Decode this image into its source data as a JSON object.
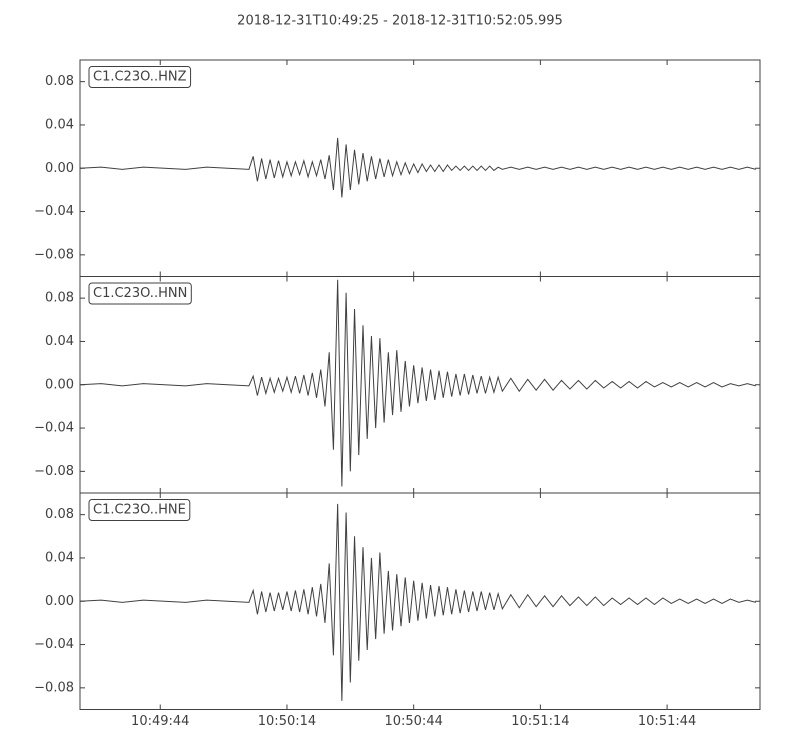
{
  "title": "2018-12-31T10:49:25  -  2018-12-31T10:52:05.995",
  "chart_data": [
    {
      "type": "line",
      "label": "C1.C23O..HNZ",
      "color": "#404040",
      "x": [
        0,
        5,
        10,
        15,
        20,
        25,
        30,
        35,
        40,
        41,
        42,
        43,
        44,
        45,
        46,
        47,
        48,
        49,
        50,
        51,
        52,
        53,
        54,
        55,
        56,
        57,
        58,
        59,
        60,
        61,
        62,
        63,
        64,
        65,
        66,
        67,
        68,
        69,
        70,
        71,
        72,
        73,
        74,
        75,
        76,
        77,
        78,
        79,
        80,
        81,
        82,
        83,
        84,
        85,
        86,
        87,
        88,
        89,
        90,
        91,
        92,
        93,
        94,
        95,
        96,
        97,
        98,
        99,
        100,
        102,
        104,
        106,
        108,
        110,
        112,
        114,
        116,
        118,
        120,
        122,
        124,
        126,
        128,
        130,
        132,
        134,
        136,
        138,
        140,
        142,
        144,
        146,
        148,
        150,
        152,
        154,
        156,
        158,
        160
      ],
      "values": [
        0,
        0.001,
        -0.001,
        0.001,
        0,
        -0.001,
        0.001,
        0,
        -0.001,
        0.011,
        -0.012,
        0.009,
        -0.01,
        0.008,
        -0.009,
        0.007,
        -0.008,
        0.006,
        -0.007,
        0.006,
        -0.006,
        0.007,
        -0.008,
        0.006,
        -0.007,
        0.008,
        -0.01,
        0.012,
        -0.02,
        0.028,
        -0.027,
        0.022,
        -0.02,
        0.017,
        -0.015,
        0.014,
        -0.012,
        0.011,
        -0.01,
        0.009,
        -0.008,
        0.008,
        -0.007,
        0.006,
        -0.006,
        0.005,
        -0.005,
        0.004,
        -0.004,
        0.004,
        -0.003,
        0.003,
        -0.003,
        0.003,
        -0.003,
        0.003,
        -0.002,
        0.002,
        -0.002,
        0.002,
        -0.002,
        0.002,
        -0.002,
        0.002,
        -0.002,
        0.002,
        -0.002,
        0.001,
        -0.001,
        0.001,
        -0.001,
        0.001,
        -0.001,
        0.001,
        -0.001,
        0.001,
        -0.001,
        0.001,
        -0.001,
        0.001,
        -0.001,
        0.001,
        -0.001,
        0.001,
        -0.001,
        0.001,
        -0.001,
        0.001,
        -0.001,
        0.001,
        -0.001,
        0.001,
        -0.001,
        0.001,
        -0.001,
        0.001,
        -0.001,
        0.001,
        -0.001
      ],
      "xlim": [
        0,
        160.995
      ],
      "ylim": [
        -0.1,
        0.1
      ],
      "yticks": [
        0.08,
        0.04,
        {
          "value": 0,
          "label": "0.00"
        },
        {
          "value": -0.04,
          "label": "−0.04"
        },
        {
          "value": -0.08,
          "label": "−0.08"
        }
      ]
    },
    {
      "type": "line",
      "label": "C1.C23O..HNN",
      "color": "#404040",
      "x": [
        0,
        5,
        10,
        15,
        20,
        25,
        30,
        35,
        40,
        41,
        42,
        43,
        44,
        45,
        46,
        47,
        48,
        49,
        50,
        51,
        52,
        53,
        54,
        55,
        56,
        57,
        58,
        59,
        60,
        61,
        62,
        63,
        64,
        65,
        66,
        67,
        68,
        69,
        70,
        71,
        72,
        73,
        74,
        75,
        76,
        77,
        78,
        79,
        80,
        81,
        82,
        83,
        84,
        85,
        86,
        87,
        88,
        89,
        90,
        91,
        92,
        93,
        94,
        95,
        96,
        97,
        98,
        99,
        100,
        102,
        104,
        106,
        108,
        110,
        112,
        114,
        116,
        118,
        120,
        122,
        124,
        126,
        128,
        130,
        132,
        134,
        136,
        138,
        140,
        142,
        144,
        146,
        148,
        150,
        152,
        154,
        156,
        158,
        160
      ],
      "values": [
        0,
        0.001,
        -0.001,
        0.001,
        0,
        -0.001,
        0.001,
        0,
        -0.001,
        0.008,
        -0.01,
        0.007,
        -0.008,
        0.006,
        -0.007,
        0.006,
        -0.006,
        0.007,
        -0.007,
        0.008,
        -0.008,
        0.009,
        -0.01,
        0.011,
        -0.012,
        0.014,
        -0.02,
        0.03,
        -0.06,
        0.097,
        -0.094,
        0.085,
        -0.08,
        0.07,
        -0.065,
        0.055,
        -0.05,
        0.045,
        -0.04,
        0.043,
        -0.035,
        0.03,
        -0.028,
        0.032,
        -0.025,
        0.022,
        -0.02,
        0.018,
        -0.017,
        0.016,
        -0.015,
        0.014,
        -0.014,
        0.013,
        -0.012,
        0.012,
        -0.011,
        0.01,
        -0.01,
        0.01,
        -0.009,
        0.009,
        -0.008,
        0.008,
        -0.008,
        0.007,
        -0.007,
        0.007,
        -0.006,
        0.006,
        -0.006,
        0.005,
        -0.005,
        0.005,
        -0.005,
        0.004,
        -0.004,
        0.004,
        -0.004,
        0.004,
        -0.003,
        0.003,
        -0.003,
        0.003,
        -0.003,
        0.003,
        -0.002,
        0.002,
        -0.002,
        0.002,
        -0.002,
        0.002,
        -0.002,
        0.002,
        -0.002,
        0.001,
        -0.001,
        0.001,
        -0.001
      ],
      "xlim": [
        0,
        160.995
      ],
      "ylim": [
        -0.1,
        0.1
      ],
      "yticks": [
        0.08,
        0.04,
        {
          "value": 0,
          "label": "0.00"
        },
        {
          "value": -0.04,
          "label": "−0.04"
        },
        {
          "value": -0.08,
          "label": "−0.08"
        }
      ]
    },
    {
      "type": "line",
      "label": "C1.C23O..HNE",
      "color": "#404040",
      "x": [
        0,
        5,
        10,
        15,
        20,
        25,
        30,
        35,
        40,
        41,
        42,
        43,
        44,
        45,
        46,
        47,
        48,
        49,
        50,
        51,
        52,
        53,
        54,
        55,
        56,
        57,
        58,
        59,
        60,
        61,
        62,
        63,
        64,
        65,
        66,
        67,
        68,
        69,
        70,
        71,
        72,
        73,
        74,
        75,
        76,
        77,
        78,
        79,
        80,
        81,
        82,
        83,
        84,
        85,
        86,
        87,
        88,
        89,
        90,
        91,
        92,
        93,
        94,
        95,
        96,
        97,
        98,
        99,
        100,
        102,
        104,
        106,
        108,
        110,
        112,
        114,
        116,
        118,
        120,
        122,
        124,
        126,
        128,
        130,
        132,
        134,
        136,
        138,
        140,
        142,
        144,
        146,
        148,
        150,
        152,
        154,
        156,
        158,
        160
      ],
      "values": [
        0,
        0.001,
        -0.001,
        0.001,
        0,
        -0.001,
        0.001,
        0,
        -0.001,
        0.01,
        -0.012,
        0.009,
        -0.01,
        0.008,
        -0.009,
        0.008,
        -0.008,
        0.009,
        -0.009,
        0.01,
        -0.01,
        0.011,
        -0.012,
        0.013,
        -0.014,
        0.016,
        -0.02,
        0.035,
        -0.05,
        0.09,
        -0.092,
        0.082,
        -0.075,
        0.06,
        -0.055,
        0.05,
        -0.045,
        0.04,
        -0.035,
        0.045,
        -0.03,
        0.028,
        -0.027,
        0.025,
        -0.023,
        0.022,
        -0.02,
        0.019,
        -0.018,
        0.017,
        -0.016,
        0.015,
        -0.014,
        0.014,
        -0.013,
        0.013,
        -0.012,
        0.011,
        -0.011,
        0.01,
        -0.01,
        0.009,
        -0.009,
        0.009,
        -0.008,
        0.008,
        -0.008,
        0.007,
        -0.007,
        0.006,
        -0.006,
        0.006,
        -0.005,
        0.005,
        -0.005,
        0.005,
        -0.004,
        0.004,
        -0.004,
        0.004,
        -0.004,
        0.003,
        -0.003,
        0.003,
        -0.003,
        0.003,
        -0.003,
        0.003,
        -0.002,
        0.002,
        -0.002,
        0.002,
        -0.002,
        0.002,
        -0.002,
        0.002,
        -0.001,
        0.001,
        -0.001
      ],
      "xlim": [
        0,
        160.995
      ],
      "ylim": [
        -0.1,
        0.1
      ],
      "yticks": [
        0.08,
        0.04,
        {
          "value": 0,
          "label": "0.00"
        },
        {
          "value": -0.04,
          "label": "−0.04"
        },
        {
          "value": -0.08,
          "label": "−0.08"
        }
      ],
      "xticks": [
        {
          "value": 19,
          "label": "10:49:44"
        },
        {
          "value": 49,
          "label": "10:50:14"
        },
        {
          "value": 79,
          "label": "10:50:44"
        },
        {
          "value": 109,
          "label": "10:51:14"
        },
        {
          "value": 139,
          "label": "10:51:44"
        }
      ]
    }
  ]
}
